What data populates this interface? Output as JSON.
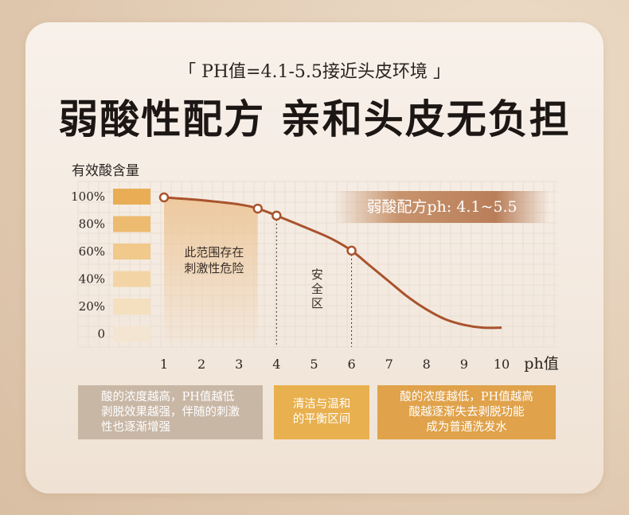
{
  "header": {
    "subtitle": "「  PH值=4.1-5.5接近头皮环境  」",
    "title": "弱酸性配方  亲和头皮无负担"
  },
  "chart_data": {
    "type": "line",
    "ylabel": "有效酸含量",
    "xlabel": "ph值",
    "x_ticks": [
      "1",
      "2",
      "3",
      "4",
      "5",
      "6",
      "7",
      "8",
      "9",
      "10"
    ],
    "y_ticks": [
      "100%",
      "80%",
      "60%",
      "40%",
      "20%",
      "0"
    ],
    "xlim": [
      1,
      10
    ],
    "ylim": [
      0,
      100
    ],
    "series": [
      {
        "x": [
          1.0,
          2.0,
          3.0,
          3.5,
          4.0,
          5.0,
          5.5,
          6.0,
          6.5,
          7.0,
          7.5,
          8.0,
          8.5,
          9.0,
          9.5,
          10.0
        ],
        "y": [
          100,
          98,
          95,
          92,
          87,
          76,
          70,
          62,
          51,
          40,
          29,
          20,
          13,
          9,
          7,
          7
        ]
      }
    ],
    "markers": [
      {
        "x": 1.0,
        "y": 100
      },
      {
        "x": 3.5,
        "y": 92
      },
      {
        "x": 4.0,
        "y": 87
      },
      {
        "x": 6.0,
        "y": 62
      }
    ],
    "y_bar_colors": [
      "#e8ad55",
      "#edbb70",
      "#f1c98a",
      "#f3d5a5",
      "#f4dfbe",
      "#f4e5d2"
    ],
    "danger_zone": {
      "x_start": 1.0,
      "x_end": 3.5,
      "label_lines": [
        "此范围存在",
        "刺激性危险"
      ]
    },
    "safe_zone": {
      "x_start": 4.0,
      "x_end": 6.0,
      "label_lines": [
        "安",
        "全",
        "区"
      ]
    },
    "badge": "弱酸配方ph: 4.1~5.5",
    "grid": true
  },
  "notes": {
    "left": "酸的浓度越高，PH值越低\n剥脱效果越强，伴随的刺激\n性也逐渐增强",
    "middle": "清洁与温和\n的平衡区间",
    "right": "酸的浓度越低，PH值越高\n酸越逐渐失去剥脱功能\n成为普通洗发水"
  },
  "colors": {
    "curve": "#a9532c",
    "marker_fill": "#ffffff",
    "grid": "#e9ded3",
    "zone_fill": "#edc79a"
  }
}
